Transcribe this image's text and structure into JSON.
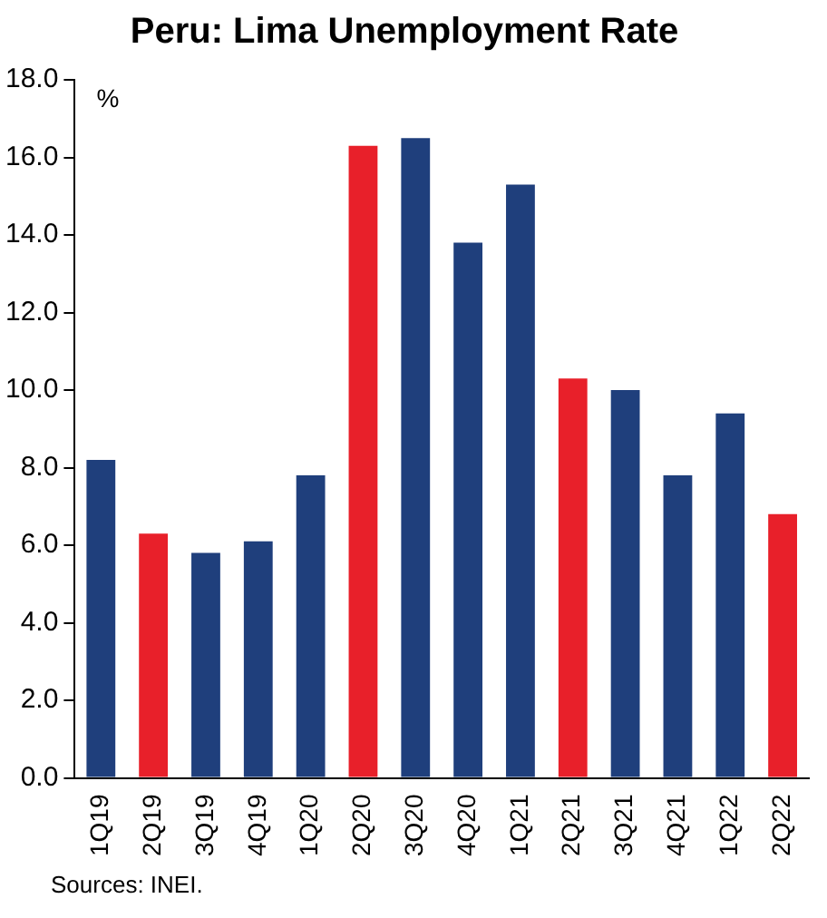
{
  "chart_data": {
    "type": "bar",
    "title": "Peru: Lima Unemployment Rate",
    "ylabel": "%",
    "categories": [
      "1Q19",
      "2Q19",
      "3Q19",
      "4Q19",
      "1Q20",
      "2Q20",
      "3Q20",
      "4Q20",
      "1Q21",
      "2Q21",
      "3Q21",
      "4Q21",
      "1Q22",
      "2Q22"
    ],
    "values": [
      8.2,
      6.3,
      5.8,
      6.1,
      7.8,
      16.3,
      16.5,
      13.8,
      15.3,
      10.3,
      10.0,
      7.8,
      9.4,
      6.8
    ],
    "colors": [
      "#1f3f7c",
      "#e8202a",
      "#1f3f7c",
      "#1f3f7c",
      "#1f3f7c",
      "#e8202a",
      "#1f3f7c",
      "#1f3f7c",
      "#1f3f7c",
      "#e8202a",
      "#1f3f7c",
      "#1f3f7c",
      "#1f3f7c",
      "#e8202a"
    ],
    "ylim": [
      0,
      18
    ],
    "yticks": [
      {
        "value": 0,
        "label": "0.0"
      },
      {
        "value": 2,
        "label": "2.0"
      },
      {
        "value": 4,
        "label": "4.0"
      },
      {
        "value": 6,
        "label": "6.0"
      },
      {
        "value": 8,
        "label": "8.0"
      },
      {
        "value": 10,
        "label": "10.0"
      },
      {
        "value": 12,
        "label": "12.0"
      },
      {
        "value": 14,
        "label": "14.0"
      },
      {
        "value": 16,
        "label": "16.0"
      },
      {
        "value": 18,
        "label": "18.0"
      }
    ],
    "grid": false,
    "legend": false,
    "annotations": [
      "Sources: INEI."
    ]
  }
}
